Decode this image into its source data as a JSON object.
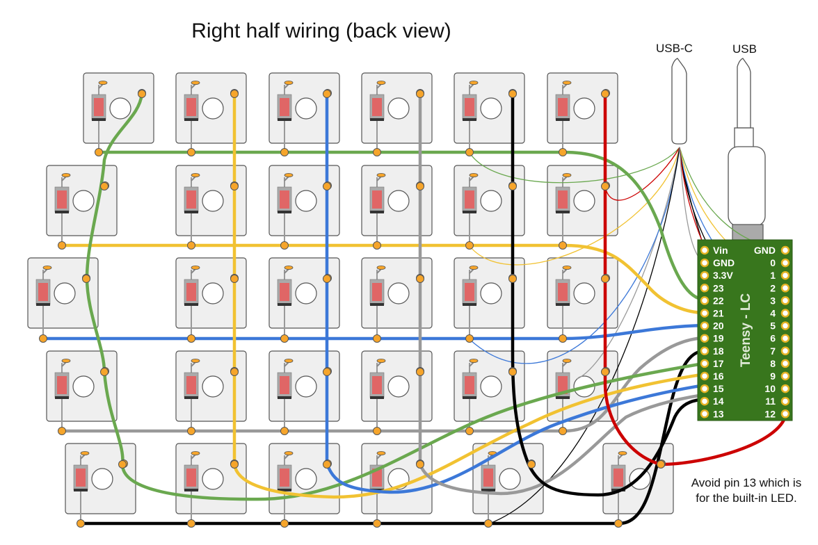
{
  "title": "Right half wiring (back view)",
  "connectors": {
    "usbc_label": "USB-C",
    "usb_label": "USB"
  },
  "board": {
    "name": "Teensy - LC",
    "left_pins": [
      "Vin",
      "GND",
      "3.3V",
      "23",
      "22",
      "21",
      "20",
      "19",
      "18",
      "17",
      "16",
      "15",
      "14",
      "13"
    ],
    "right_pins": [
      "GND",
      "0",
      "1",
      "2",
      "3",
      "4",
      "5",
      "6",
      "7",
      "8",
      "9",
      "10",
      "11",
      "12"
    ]
  },
  "note": {
    "line1": "Avoid pin 13 which is",
    "line2": "for the built-in LED."
  },
  "colors": {
    "green": "#6aa84f",
    "yellow": "#f1c232",
    "blue": "#3c78d8",
    "gray": "#999999",
    "black": "#000000",
    "red": "#cc0000",
    "board": "#38761d",
    "key_fill": "#efefef",
    "diode": "#e06666",
    "pad": "#f6a52b"
  }
}
